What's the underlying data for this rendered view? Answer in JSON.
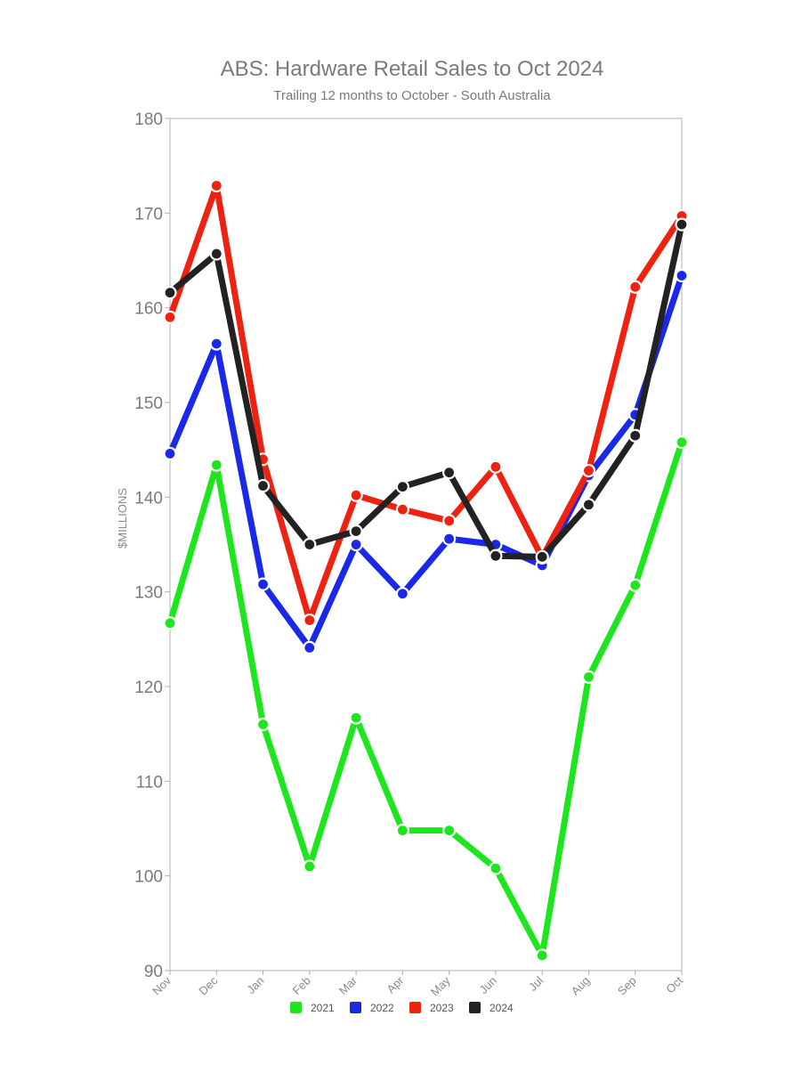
{
  "chart_data": {
    "type": "line",
    "title": "ABS: Hardware Retail Sales to Oct 2024",
    "subtitle": "Trailing 12 months to October - South Australia",
    "xlabel": "",
    "ylabel": "$MILLIONS",
    "categories": [
      "Nov",
      "Dec",
      "Jan",
      "Feb",
      "Mar",
      "Apr",
      "May",
      "Jun",
      "Jul",
      "Aug",
      "Sep",
      "Oct"
    ],
    "ylim": [
      90,
      180
    ],
    "yticks": [
      90,
      100,
      110,
      120,
      130,
      140,
      150,
      160,
      170,
      180
    ],
    "grid": false,
    "legend_position": "bottom",
    "series": [
      {
        "name": "2021",
        "color": "#1ee61e",
        "values": [
          126.7,
          143.4,
          116.0,
          101.0,
          116.7,
          104.8,
          104.8,
          100.8,
          91.6,
          121.0,
          130.7,
          145.8
        ]
      },
      {
        "name": "2022",
        "color": "#1a28e8",
        "values": [
          144.6,
          156.2,
          130.8,
          124.1,
          135.0,
          129.8,
          135.6,
          135.0,
          132.8,
          142.3,
          148.7,
          163.4
        ]
      },
      {
        "name": "2023",
        "color": "#ee2211",
        "values": [
          159.0,
          172.9,
          144.0,
          127.0,
          140.2,
          138.7,
          137.5,
          143.2,
          133.6,
          142.8,
          162.2,
          169.7
        ]
      },
      {
        "name": "2024",
        "color": "#222222",
        "values": [
          161.6,
          165.7,
          141.2,
          135.0,
          136.4,
          141.1,
          142.6,
          133.8,
          133.7,
          139.2,
          146.5,
          168.8
        ]
      }
    ]
  }
}
